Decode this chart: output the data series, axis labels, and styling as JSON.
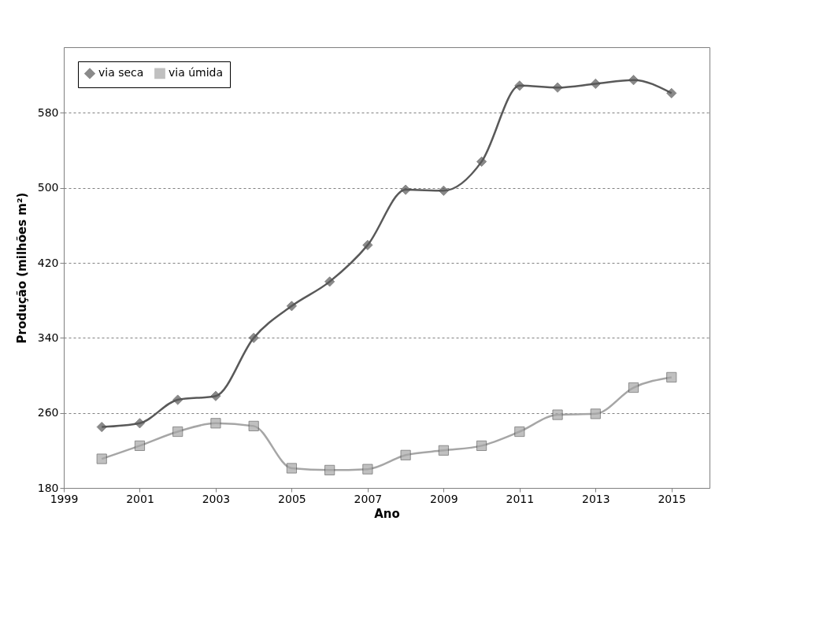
{
  "chart_data": {
    "type": "line",
    "xlabel": "Ano",
    "ylabel": "Produção (milhões m²)",
    "x": [
      2000,
      2001,
      2002,
      2003,
      2004,
      2005,
      2006,
      2007,
      2008,
      2009,
      2010,
      2011,
      2012,
      2013,
      2014,
      2015
    ],
    "series": [
      {
        "name": "via seca",
        "color": "#595959",
        "marker": "diamond",
        "values": [
          245,
          249,
          274,
          278,
          340,
          374,
          400,
          439,
          498,
          497,
          528,
          609,
          607,
          611,
          615,
          601
        ]
      },
      {
        "name": "via úmida",
        "color": "#a6a6a6",
        "marker": "square",
        "values": [
          211,
          225,
          240,
          249,
          246,
          201,
          199,
          200,
          215,
          220,
          225,
          240,
          258,
          259,
          287,
          298
        ]
      }
    ],
    "xlim": [
      1999,
      2016
    ],
    "xticks": [
      1999,
      2001,
      2003,
      2005,
      2007,
      2009,
      2011,
      2013,
      2015
    ],
    "ylim": [
      180,
      650
    ],
    "yticks": [
      180,
      260,
      340,
      420,
      500,
      580
    ],
    "grid": "y",
    "legend": "top left",
    "line_style": "solid"
  }
}
